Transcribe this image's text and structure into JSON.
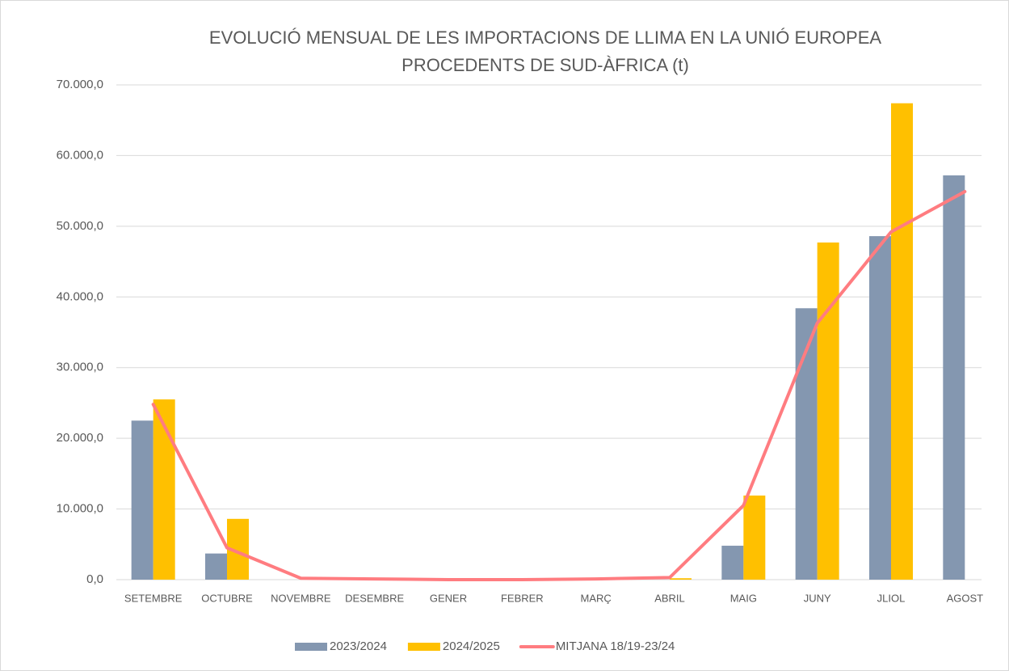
{
  "chart_data": {
    "type": "bar_line",
    "title": [
      "EVOLUCIÓ MENSUAL DE LES IMPORTACIONS DE LLIMA EN LA UNIÓ EUROPEA",
      "PROCEDENTS DE SUD-ÀFRICA (t)"
    ],
    "categories": [
      "SETEMBRE",
      "OCTUBRE",
      "NOVEMBRE",
      "DESEMBRE",
      "GENER",
      "FEBRER",
      "MARÇ",
      "ABRIL",
      "MAIG",
      "JUNY",
      "JLIOL",
      "AGOST"
    ],
    "series": [
      {
        "name": "2023/2024",
        "type": "bar",
        "color": "#8497b0",
        "values": [
          22500,
          3700,
          0,
          0,
          0,
          0,
          0,
          0,
          4800,
          38400,
          48600,
          57200
        ]
      },
      {
        "name": "2024/2025",
        "type": "bar",
        "color": "#ffc000",
        "values": [
          25500,
          8600,
          0,
          0,
          0,
          0,
          0,
          200,
          11900,
          47700,
          67400,
          null
        ]
      },
      {
        "name": "MITJANA 18/19-23/24",
        "type": "line",
        "color": "#ff7c80",
        "values": [
          24800,
          4500,
          200,
          100,
          0,
          0,
          100,
          300,
          10500,
          36300,
          49200,
          54900
        ]
      }
    ],
    "ylim": [
      0,
      70000
    ],
    "yticks": [
      {
        "value": 0,
        "label": "0,0"
      },
      {
        "value": 10000,
        "label": "10.000,0"
      },
      {
        "value": 20000,
        "label": "20.000,0"
      },
      {
        "value": 30000,
        "label": "30.000,0"
      },
      {
        "value": 40000,
        "label": "40.000,0"
      },
      {
        "value": 50000,
        "label": "50.000,0"
      },
      {
        "value": 60000,
        "label": "60.000,0"
      },
      {
        "value": 70000,
        "label": "70.000,0"
      }
    ],
    "grid": true,
    "legend": "bottom"
  }
}
